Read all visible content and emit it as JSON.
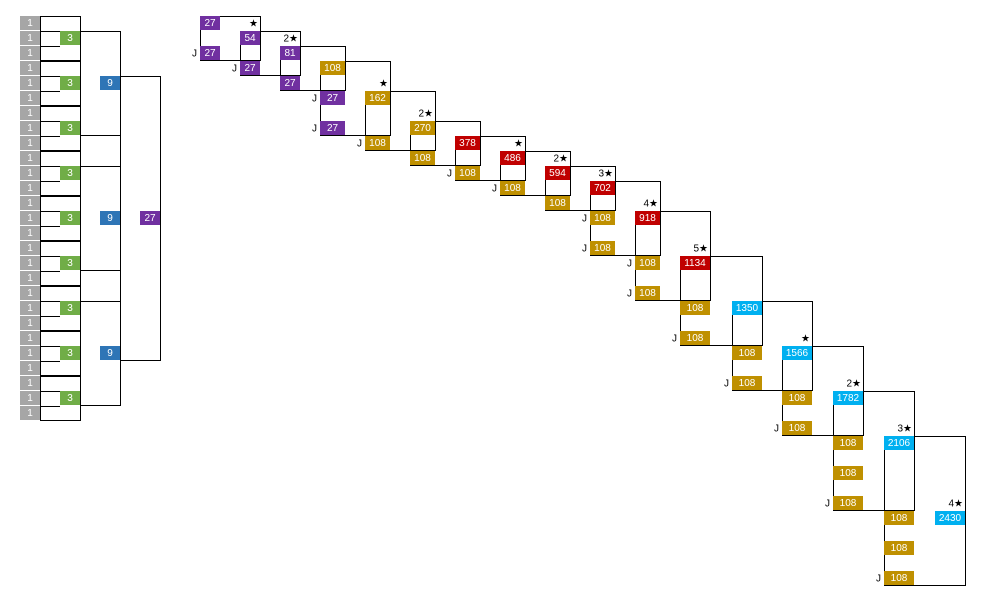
{
  "tree": {
    "leaves": [
      "1",
      "1",
      "1",
      "1",
      "1",
      "1",
      "1",
      "1",
      "1",
      "1",
      "1",
      "1",
      "1",
      "1",
      "1",
      "1",
      "1",
      "1",
      "1",
      "1",
      "1",
      "1",
      "1",
      "1",
      "1",
      "1",
      "1"
    ],
    "threes": [
      "3",
      "3",
      "3",
      "3",
      "3",
      "3",
      "3",
      "3",
      "3"
    ],
    "nines": [
      "9",
      "9",
      "9"
    ],
    "top": "27",
    "colors": {
      "leaf": "#a6a6a6",
      "three": "#70ad47",
      "nine": "#2e75b6",
      "top": "#7030a0"
    }
  },
  "chain": {
    "colors": {
      "purple": "#7030a0",
      "gold": "#bf9000",
      "red": "#c00000",
      "cyan": "#00b0f0"
    },
    "columns": [
      {
        "items": [
          {
            "label": "27",
            "color": "purple"
          },
          {
            "label": "27",
            "color": "purple",
            "mark": "J"
          }
        ]
      },
      {
        "star": "★",
        "items": [
          {
            "label": "54",
            "color": "purple"
          },
          {
            "label": "27",
            "color": "purple",
            "mark": "J"
          }
        ]
      },
      {
        "star": "2★",
        "items": [
          {
            "label": "81",
            "color": "purple"
          },
          {
            "label": "27",
            "color": "purple"
          }
        ]
      },
      {
        "items": [
          {
            "label": "108",
            "color": "gold"
          },
          {
            "label": "27",
            "color": "purple",
            "mark": "J"
          },
          {
            "label": "27",
            "color": "purple",
            "mark": "J"
          }
        ]
      },
      {
        "star": "★",
        "items": [
          {
            "label": "162",
            "color": "gold"
          },
          {
            "label": "108",
            "color": "gold",
            "mark": "J"
          }
        ]
      },
      {
        "star": "2★",
        "items": [
          {
            "label": "270",
            "color": "gold"
          },
          {
            "label": "108",
            "color": "gold"
          }
        ]
      },
      {
        "items": [
          {
            "label": "378",
            "color": "red"
          },
          {
            "label": "108",
            "color": "gold",
            "mark": "J"
          }
        ]
      },
      {
        "star": "★",
        "items": [
          {
            "label": "486",
            "color": "red"
          },
          {
            "label": "108",
            "color": "gold",
            "mark": "J"
          }
        ]
      },
      {
        "star": "2★",
        "items": [
          {
            "label": "594",
            "color": "red"
          },
          {
            "label": "108",
            "color": "gold"
          }
        ]
      },
      {
        "star": "3★",
        "items": [
          {
            "label": "702",
            "color": "red"
          },
          {
            "label": "108",
            "color": "gold",
            "mark": "J"
          },
          {
            "label": "108",
            "color": "gold",
            "mark": "J"
          }
        ]
      },
      {
        "star": "4★",
        "items": [
          {
            "label": "918",
            "color": "red"
          },
          {
            "label": "108",
            "color": "gold",
            "mark": "J"
          },
          {
            "label": "108",
            "color": "gold",
            "mark": "J"
          }
        ]
      },
      {
        "star": "5★",
        "items": [
          {
            "label": "1134",
            "color": "red"
          },
          {
            "label": "108",
            "color": "gold"
          },
          {
            "label": "108",
            "color": "gold",
            "mark": "J"
          }
        ]
      },
      {
        "items": [
          {
            "label": "1350",
            "color": "cyan"
          },
          {
            "label": "108",
            "color": "gold"
          },
          {
            "label": "108",
            "color": "gold",
            "mark": "J"
          }
        ]
      },
      {
        "star": "★",
        "items": [
          {
            "label": "1566",
            "color": "cyan"
          },
          {
            "label": "108",
            "color": "gold"
          },
          {
            "label": "108",
            "color": "gold",
            "mark": "J"
          }
        ]
      },
      {
        "star": "2★",
        "items": [
          {
            "label": "1782",
            "color": "cyan"
          },
          {
            "label": "108",
            "color": "gold"
          },
          {
            "label": "108",
            "color": "gold"
          },
          {
            "label": "108",
            "color": "gold",
            "mark": "J"
          }
        ]
      },
      {
        "star": "3★",
        "items": [
          {
            "label": "2106",
            "color": "cyan"
          },
          {
            "label": "108",
            "color": "gold"
          },
          {
            "label": "108",
            "color": "gold"
          },
          {
            "label": "108",
            "color": "gold",
            "mark": "J"
          }
        ]
      },
      {
        "star": "4★",
        "items": [
          {
            "label": "2430",
            "color": "cyan"
          }
        ]
      }
    ]
  }
}
